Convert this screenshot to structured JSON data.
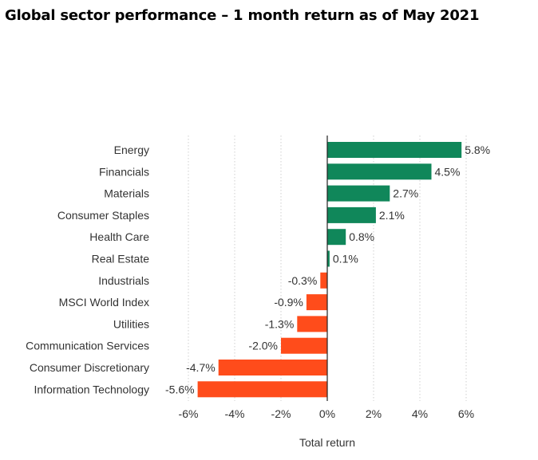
{
  "title": "Global sector performance – 1 month return as of May 2021",
  "chart_data": {
    "type": "bar",
    "orientation": "horizontal",
    "title": "Global sector performance – 1 month return as of May 2021",
    "xlabel": "Total return",
    "ylabel": "",
    "categories": [
      "Energy",
      "Financials",
      "Materials",
      "Consumer Staples",
      "Health Care",
      "Real Estate",
      "Industrials",
      "MSCI World Index",
      "Utilities",
      "Communication Services",
      "Consumer Discretionary",
      "Information Technology"
    ],
    "values": [
      5.8,
      4.5,
      2.7,
      2.1,
      0.8,
      0.1,
      -0.3,
      -0.9,
      -1.3,
      -2.0,
      -4.7,
      -5.6
    ],
    "labels": [
      "5.8%",
      "4.5%",
      "2.7%",
      "2.1%",
      "0.8%",
      "0.1%",
      "-0.3%",
      "-0.9%",
      "-1.3%",
      "-2.0%",
      "-4.7%",
      "-5.6%"
    ],
    "xlim": [
      -6,
      6
    ],
    "xticks": [
      -6,
      -4,
      -2,
      0,
      2,
      4,
      6
    ],
    "xtick_labels": [
      "-6%",
      "-4%",
      "-2%",
      "0%",
      "2%",
      "4%",
      "6%"
    ],
    "grid": "vertical-dotted",
    "colors": {
      "positive": "#10875a",
      "negative": "#ff4c1b",
      "grid": "#cfcfcf",
      "axis": "#222222"
    }
  }
}
